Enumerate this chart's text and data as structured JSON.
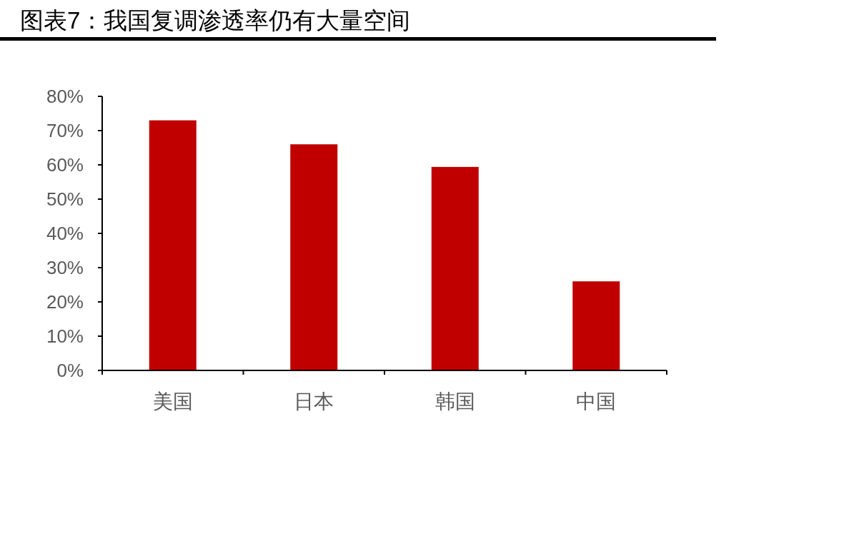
{
  "chart_data": {
    "type": "bar",
    "title": "图表7：我国复调渗透率仍有大量空间",
    "categories": [
      "美国",
      "日本",
      "韩国",
      "中国"
    ],
    "values": [
      73,
      66,
      59.4,
      26
    ],
    "color": "#c00000",
    "ylim": [
      0,
      80
    ],
    "yticks": [
      {
        "value": 0,
        "label": "0%"
      },
      {
        "value": 10,
        "label": "10%"
      },
      {
        "value": 20,
        "label": "20%"
      },
      {
        "value": 30,
        "label": "30%"
      },
      {
        "value": 40,
        "label": "40%"
      },
      {
        "value": 50,
        "label": "50%"
      },
      {
        "value": 60,
        "label": "60%"
      },
      {
        "value": 70,
        "label": "70%"
      },
      {
        "value": 80,
        "label": "80%"
      }
    ]
  }
}
